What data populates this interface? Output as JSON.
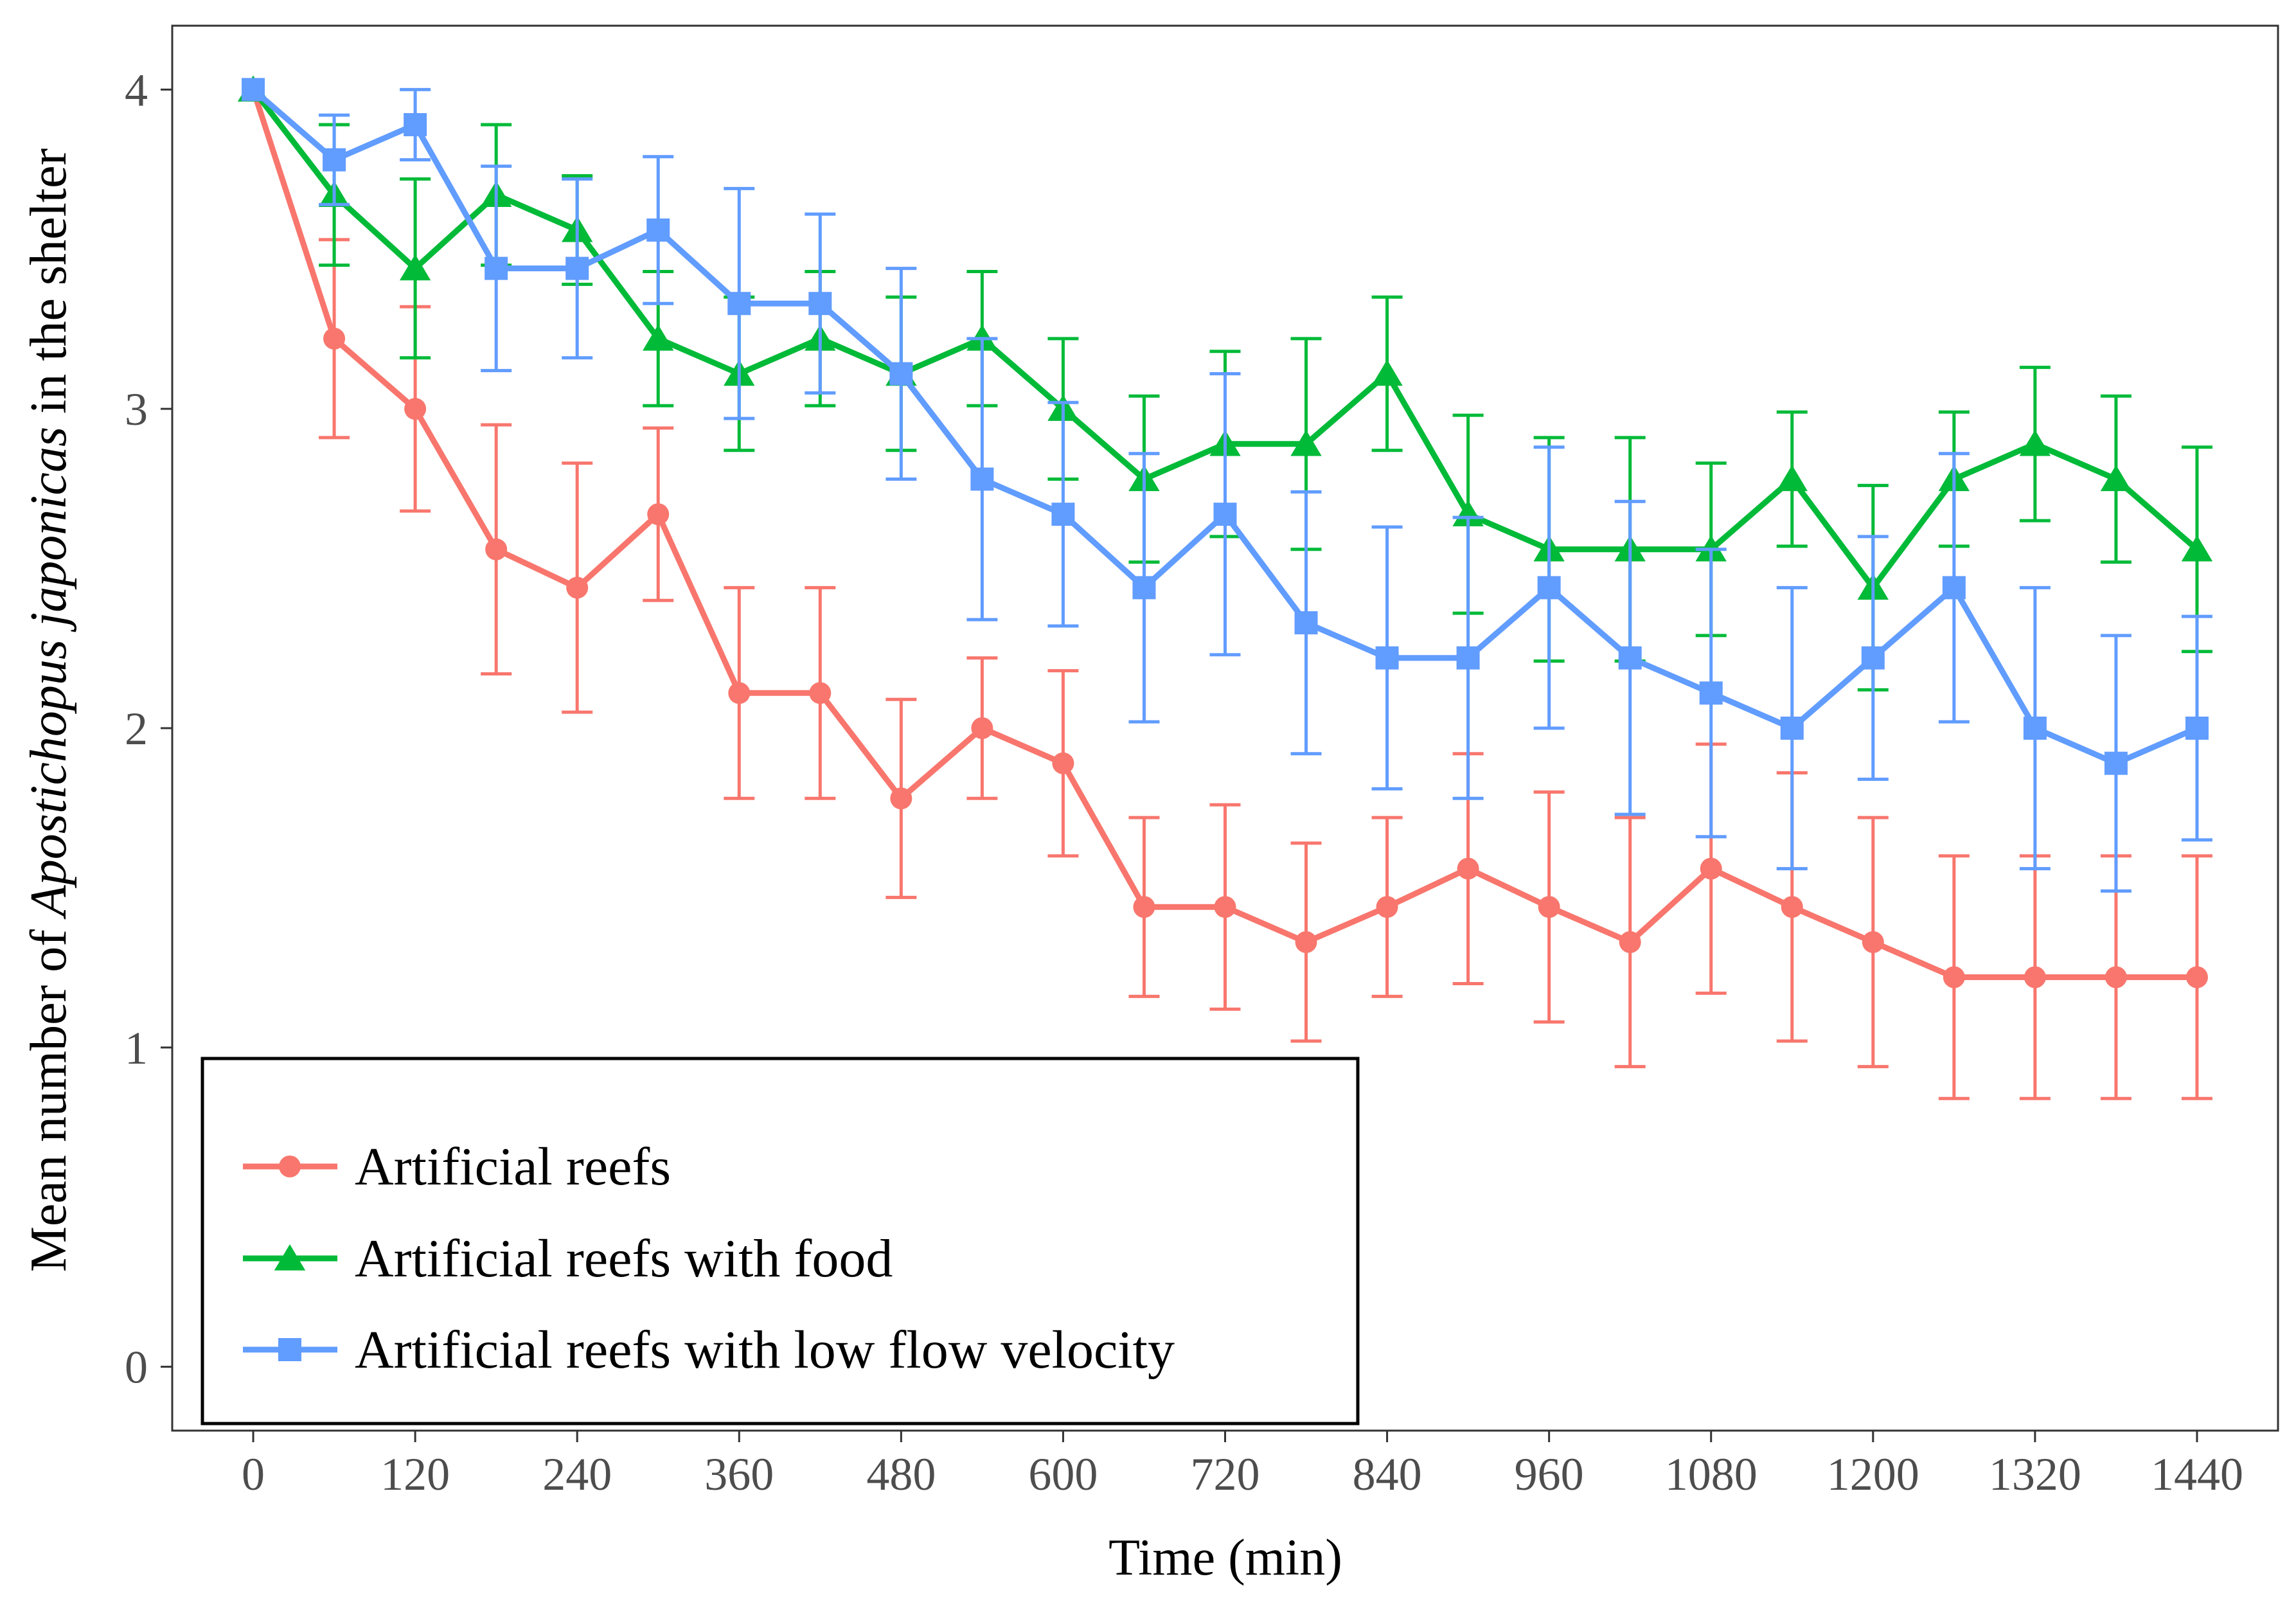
{
  "chart_data": {
    "type": "line",
    "title": "",
    "xlabel": "Time (min)",
    "ylabel": {
      "prefix": "Mean number of ",
      "species": "Apostichopus japonicas",
      "suffix": " in the shelter"
    },
    "xlim": [
      -60,
      1500
    ],
    "ylim": [
      -0.2,
      4.2
    ],
    "xticks": [
      0,
      120,
      240,
      360,
      480,
      600,
      720,
      840,
      960,
      1080,
      1200,
      1320,
      1440
    ],
    "yticks": [
      0,
      1,
      2,
      3,
      4
    ],
    "x": [
      0,
      60,
      120,
      180,
      240,
      300,
      360,
      420,
      480,
      540,
      600,
      660,
      720,
      780,
      840,
      900,
      960,
      1020,
      1080,
      1140,
      1200,
      1260,
      1320,
      1380,
      1440
    ],
    "legend_position": "bottom-left",
    "series": [
      {
        "name": "Artificial reefs",
        "color": "#f8766d",
        "marker": "circle",
        "values": [
          4.0,
          3.22,
          3.0,
          2.56,
          2.44,
          2.67,
          2.11,
          2.11,
          1.78,
          2.0,
          1.89,
          1.44,
          1.44,
          1.33,
          1.44,
          1.56,
          1.44,
          1.33,
          1.56,
          1.44,
          1.33,
          1.22,
          1.22,
          1.22,
          1.22
        ],
        "errors": [
          0.0,
          0.31,
          0.32,
          0.39,
          0.39,
          0.27,
          0.33,
          0.33,
          0.31,
          0.22,
          0.29,
          0.28,
          0.32,
          0.31,
          0.28,
          0.36,
          0.36,
          0.39,
          0.39,
          0.42,
          0.39,
          0.38,
          0.38,
          0.38,
          0.38
        ]
      },
      {
        "name": "Artificial reefs with food",
        "color": "#00ba38",
        "marker": "triangle",
        "values": [
          4.0,
          3.67,
          3.44,
          3.67,
          3.56,
          3.22,
          3.11,
          3.22,
          3.11,
          3.22,
          3.0,
          2.78,
          2.89,
          2.89,
          3.11,
          2.67,
          2.56,
          2.56,
          2.56,
          2.78,
          2.44,
          2.78,
          2.89,
          2.78,
          2.56
        ],
        "errors": [
          0.0,
          0.22,
          0.28,
          0.22,
          0.17,
          0.21,
          0.24,
          0.21,
          0.24,
          0.21,
          0.22,
          0.26,
          0.29,
          0.33,
          0.24,
          0.31,
          0.35,
          0.35,
          0.27,
          0.21,
          0.32,
          0.21,
          0.24,
          0.26,
          0.32
        ]
      },
      {
        "name": "Artificial reefs with low flow velocity",
        "color": "#619cff",
        "marker": "square",
        "values": [
          4.0,
          3.78,
          3.89,
          3.44,
          3.44,
          3.56,
          3.33,
          3.33,
          3.11,
          2.78,
          2.67,
          2.44,
          2.67,
          2.33,
          2.22,
          2.22,
          2.44,
          2.22,
          2.11,
          2.0,
          2.22,
          2.44,
          2.0,
          1.89,
          2.0
        ],
        "errors": [
          0.0,
          0.14,
          0.11,
          0.32,
          0.28,
          0.23,
          0.36,
          0.28,
          0.33,
          0.44,
          0.35,
          0.42,
          0.44,
          0.41,
          0.41,
          0.44,
          0.44,
          0.49,
          0.45,
          0.44,
          0.38,
          0.42,
          0.44,
          0.4,
          0.35
        ]
      }
    ]
  }
}
